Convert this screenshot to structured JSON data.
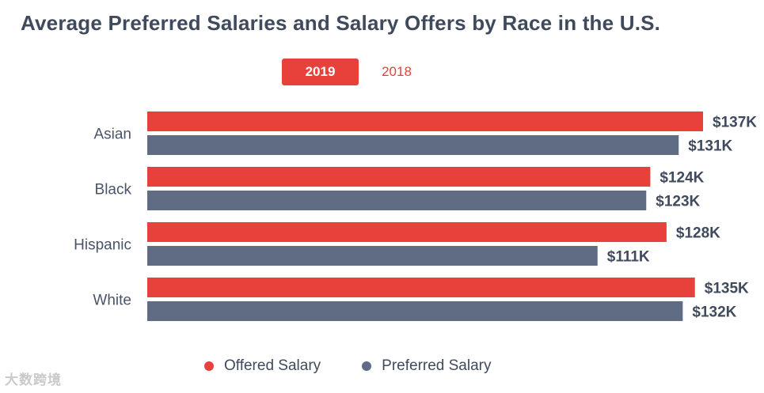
{
  "chart_data": {
    "type": "bar",
    "orientation": "horizontal",
    "title": "Average Preferred Salaries and Salary Offers by Race in the U.S.",
    "categories": [
      "Asian",
      "Black",
      "Hispanic",
      "White"
    ],
    "series": [
      {
        "name": "Offered Salary",
        "color": "#e8403b",
        "values": [
          137,
          124,
          128,
          135
        ],
        "labels": [
          "$137K",
          "$124K",
          "$128K",
          "$135K"
        ]
      },
      {
        "name": "Preferred Salary",
        "color": "#5f6c84",
        "values": [
          131,
          123,
          111,
          132
        ],
        "labels": [
          "$131K",
          "$123K",
          "$111K",
          "$132K"
        ]
      }
    ],
    "xlim": [
      0,
      137
    ],
    "units": "thousand USD",
    "grid": false,
    "legend_position": "bottom"
  },
  "tabs": [
    {
      "label": "2019",
      "active": true
    },
    {
      "label": "2018",
      "active": false
    }
  ],
  "watermark": "大数跨境",
  "colors": {
    "title": "#3f4a5c",
    "accent": "#e8403b",
    "secondary": "#5f6c84",
    "text": "#3f4a5c",
    "category_label": "#4a5468"
  }
}
